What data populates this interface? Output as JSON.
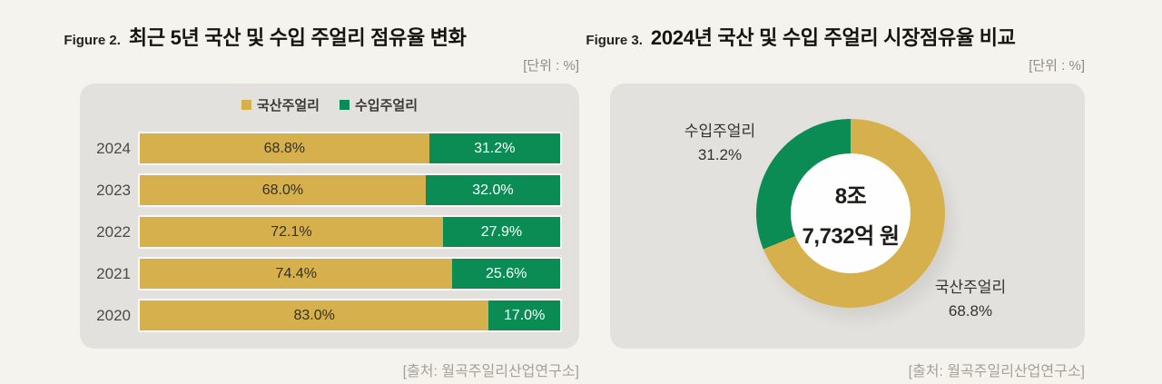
{
  "left_chart": {
    "figure_label": "Figure 2.",
    "title": "최근 5년 국산 및 수입 주얼리 점유율 변화",
    "unit": "[단위 : %]",
    "source": "[출처: 월곡주일리산업연구소]"
  },
  "right_chart": {
    "figure_label": "Figure 3.",
    "title": "2024년 국산 및 수입 주얼리 시장점유율 비교",
    "unit": "[단위 : %]",
    "source": "[출처: 월곡주일리산업연구소]",
    "center_line1": "8조",
    "center_line2": "7,732억 원",
    "callout_import_name": "수입주얼리",
    "callout_import_pct": "31.2%",
    "callout_domestic_name": "국산주얼리",
    "callout_domestic_pct": "68.8%"
  },
  "chart_data": [
    {
      "type": "bar",
      "subtype": "horizontal-stacked",
      "title": "최근 5년 국산 및 수입 주얼리 점유율 변화",
      "unit": "%",
      "categories": [
        "2024",
        "2023",
        "2022",
        "2021",
        "2020"
      ],
      "series": [
        {
          "name": "국산주얼리",
          "key": "domestic",
          "color": "#d6b04c",
          "label_color": "#33312a",
          "values": [
            68.8,
            68.0,
            72.1,
            74.4,
            83.0
          ],
          "labels": [
            "68.8%",
            "68.0%",
            "72.1%",
            "74.4%",
            "83.0%"
          ]
        },
        {
          "name": "수입주얼리",
          "key": "import",
          "color": "#0c8c55",
          "label_color": "#ffffff",
          "values": [
            31.2,
            32.0,
            27.9,
            25.6,
            17.0
          ],
          "labels": [
            "31.2%",
            "32.0%",
            "27.9%",
            "25.6%",
            "17.0%"
          ]
        }
      ],
      "xlim": [
        0,
        100
      ],
      "legend_position": "top",
      "source": "[출처: 월곡주일리산업연구소]"
    },
    {
      "type": "pie",
      "subtype": "donut",
      "title": "2024년 국산 및 수입 주얼리 시장점유율 비교",
      "unit": "%",
      "start_angle_deg": 0,
      "slices": [
        {
          "label": "국산주얼리",
          "value": 68.8,
          "color": "#d6b04c"
        },
        {
          "label": "수입주얼리",
          "value": 31.2,
          "color": "#0c8c55"
        }
      ],
      "center_text": [
        "8조",
        "7,732억 원"
      ],
      "source": "[출처: 월곡주일리산업연구소]"
    }
  ]
}
